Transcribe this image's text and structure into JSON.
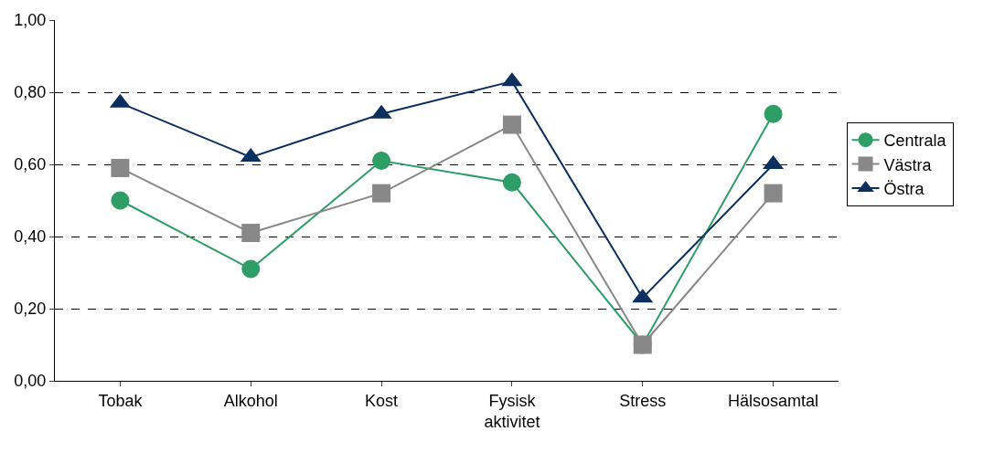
{
  "chart_data": {
    "type": "line",
    "categories": [
      "Tobak",
      "Alkohol",
      "Kost",
      "Fysisk\naktivitet",
      "Stress",
      "Hälsosamtal"
    ],
    "series": [
      {
        "name": "Centrala",
        "color": "#2e9e66",
        "marker": "circle",
        "values": [
          0.5,
          0.31,
          0.61,
          0.55,
          0.1,
          0.74
        ]
      },
      {
        "name": "Västra",
        "color": "#888888",
        "marker": "square",
        "values": [
          0.59,
          0.41,
          0.52,
          0.71,
          0.1,
          0.52
        ]
      },
      {
        "name": "Östra",
        "color": "#0b2f5e",
        "marker": "triangle",
        "values": [
          0.77,
          0.62,
          0.74,
          0.83,
          0.23,
          0.6
        ]
      }
    ],
    "ylim": [
      0,
      1
    ],
    "yticks": [
      {
        "value": 0,
        "label": "0,00"
      },
      {
        "value": 0.2,
        "label": "0,20"
      },
      {
        "value": 0.4,
        "label": "0,40"
      },
      {
        "value": 0.6,
        "label": "0,60"
      },
      {
        "value": 0.8,
        "label": "0,80"
      },
      {
        "value": 1,
        "label": "1,00"
      }
    ],
    "grid": "y",
    "legend": "right",
    "line_style": "solid"
  }
}
